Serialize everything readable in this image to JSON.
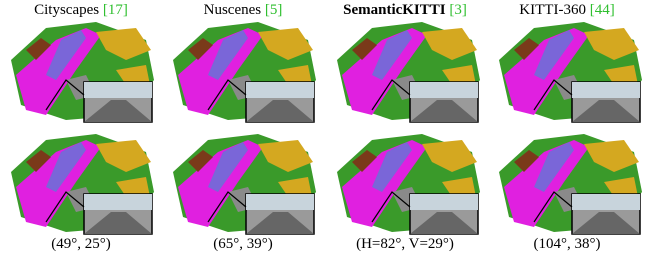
{
  "columns": [
    {
      "name": "Cityscapes",
      "cite": "[17]",
      "caption": "(49°, 25°)"
    },
    {
      "name": "Nuscenes",
      "cite": "[5]",
      "caption": "(65°, 39°)"
    },
    {
      "name": "SemanticKITTI",
      "cite": "[3]",
      "caption": "(H=82°, V=29°)"
    },
    {
      "name": "KITTI-360",
      "cite": "[44]",
      "caption": "(104°, 38°)"
    }
  ]
}
